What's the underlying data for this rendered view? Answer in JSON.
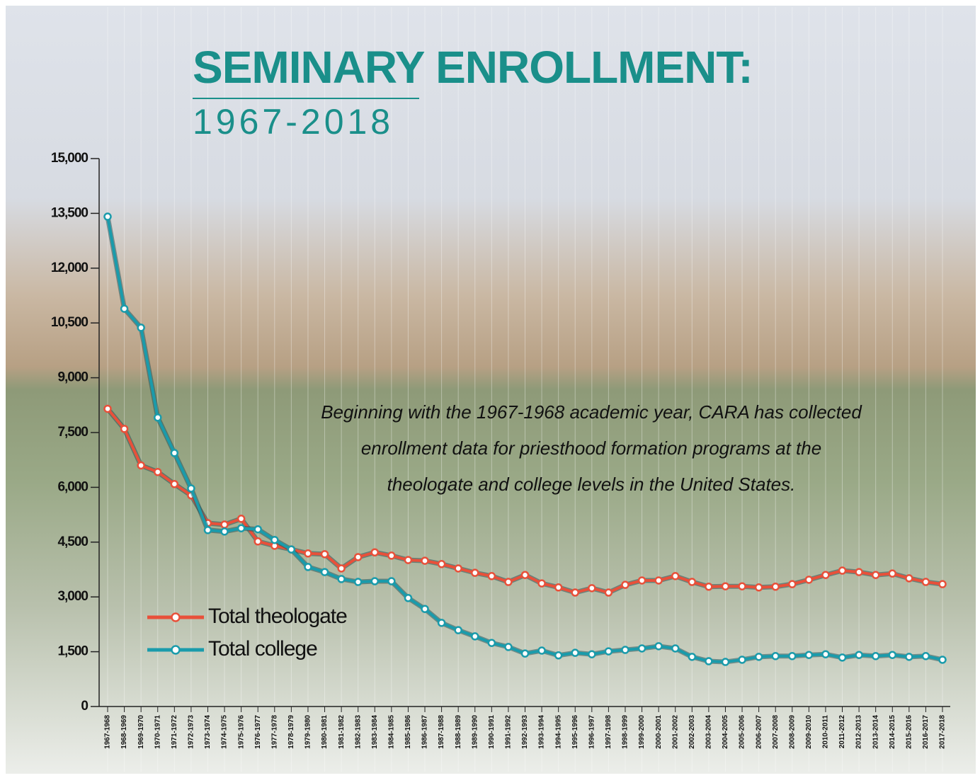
{
  "chart_data": {
    "type": "line",
    "title": "SEMINARY ENROLLMENT:",
    "subtitle": "1967-2018",
    "annotation": [
      "Beginning with the 1967-1968 academic year, CARA has collected",
      "enrollment data for priesthood formation programs at the",
      "theologate and college levels in the United States."
    ],
    "categories": [
      "1967-1968",
      "1968-1969",
      "1969-1970",
      "1970-1971",
      "1971-1972",
      "1972-1973",
      "1973-1974",
      "1974-1975",
      "1975-1976",
      "1976-1977",
      "1977-1978",
      "1978-1979",
      "1979-1980",
      "1980-1981",
      "1981-1982",
      "1982-1983",
      "1983-1984",
      "1984-1985",
      "1985-1986",
      "1986-1987",
      "1987-1988",
      "1988-1989",
      "1989-1990",
      "1990-1991",
      "1991-1992",
      "1992-1993",
      "1993-1994",
      "1994-1995",
      "1995-1996",
      "1996-1997",
      "1997-1998",
      "1998-1999",
      "1999-2000",
      "2000-2001",
      "2001-2002",
      "2002-2003",
      "2003-2004",
      "2004-2005",
      "2005-2006",
      "2006-2007",
      "2007-2008",
      "2008-2009",
      "2009-2010",
      "2010-2011",
      "2011-2012",
      "2012-2013",
      "2013-2014",
      "2014-2015",
      "2015-2016",
      "2016-2017",
      "2017-2018"
    ],
    "series": [
      {
        "name": "Total theologate",
        "color": "#e8503a",
        "values": [
          8150,
          7600,
          6600,
          6420,
          6090,
          5780,
          5020,
          4980,
          5140,
          4520,
          4400,
          4300,
          4190,
          4170,
          3780,
          4090,
          4220,
          4130,
          4010,
          3990,
          3900,
          3780,
          3660,
          3570,
          3410,
          3600,
          3370,
          3260,
          3120,
          3240,
          3120,
          3330,
          3450,
          3450,
          3570,
          3410,
          3280,
          3290,
          3290,
          3260,
          3280,
          3350,
          3470,
          3600,
          3720,
          3680,
          3600,
          3640,
          3510,
          3410,
          3350
        ]
      },
      {
        "name": "Total college",
        "color": "#1a9bab",
        "values": [
          13410,
          10890,
          10370,
          7910,
          6940,
          5970,
          4830,
          4790,
          4880,
          4850,
          4560,
          4300,
          3820,
          3680,
          3490,
          3410,
          3430,
          3430,
          2970,
          2670,
          2290,
          2090,
          1920,
          1740,
          1630,
          1450,
          1530,
          1400,
          1470,
          1430,
          1510,
          1550,
          1590,
          1650,
          1590,
          1360,
          1240,
          1220,
          1280,
          1360,
          1380,
          1380,
          1410,
          1430,
          1340,
          1410,
          1380,
          1410,
          1360,
          1380,
          1280
        ]
      }
    ],
    "ylim": [
      0,
      15000
    ],
    "yticks": [
      0,
      {
        "value": 1500,
        "label": "1,500"
      },
      {
        "value": 3000,
        "label": "3,000"
      },
      {
        "value": 4500,
        "label": "4,500"
      },
      {
        "value": 6000,
        "label": "6,000"
      },
      {
        "value": 7500,
        "label": "7,500"
      },
      {
        "value": 9000,
        "label": "9,000"
      },
      {
        "value": 10500,
        "label": "10,500"
      },
      {
        "value": 12000,
        "label": "12,000"
      },
      {
        "value": 13500,
        "label": "13,500"
      },
      {
        "value": 15000,
        "label": "15,000"
      }
    ],
    "grid": true,
    "legend": "lower-left"
  }
}
